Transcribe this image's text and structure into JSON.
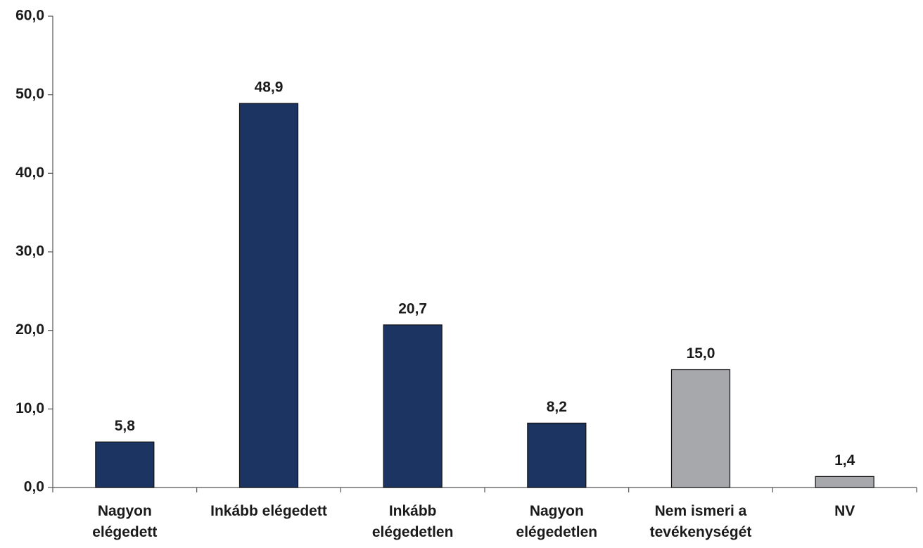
{
  "chart_data": {
    "type": "bar",
    "categories": [
      "Nagyon\nelégedett",
      "Inkább elégedett",
      "Inkább\nelégedetlen",
      "Nagyon\nelégedetlen",
      "Nem ismeri a\ntevékenységét",
      "NV"
    ],
    "values": [
      5.8,
      48.9,
      20.7,
      8.2,
      15.0,
      1.4
    ],
    "value_labels": [
      "5,8",
      "48,9",
      "20,7",
      "8,2",
      "15,0",
      "1,4"
    ],
    "colors": [
      "#1c3461",
      "#1c3461",
      "#1c3461",
      "#1c3461",
      "#a6a8ab",
      "#a6a8ab"
    ],
    "ylim": [
      0,
      60
    ],
    "yticks": [
      {
        "value": 0,
        "label": "0,0"
      },
      {
        "value": 10,
        "label": "10,0"
      },
      {
        "value": 20,
        "label": "20,0"
      },
      {
        "value": 30,
        "label": "30,0"
      },
      {
        "value": 40,
        "label": "40,0"
      },
      {
        "value": 50,
        "label": "50,0"
      },
      {
        "value": 60,
        "label": "60,0"
      }
    ],
    "grid": false
  }
}
